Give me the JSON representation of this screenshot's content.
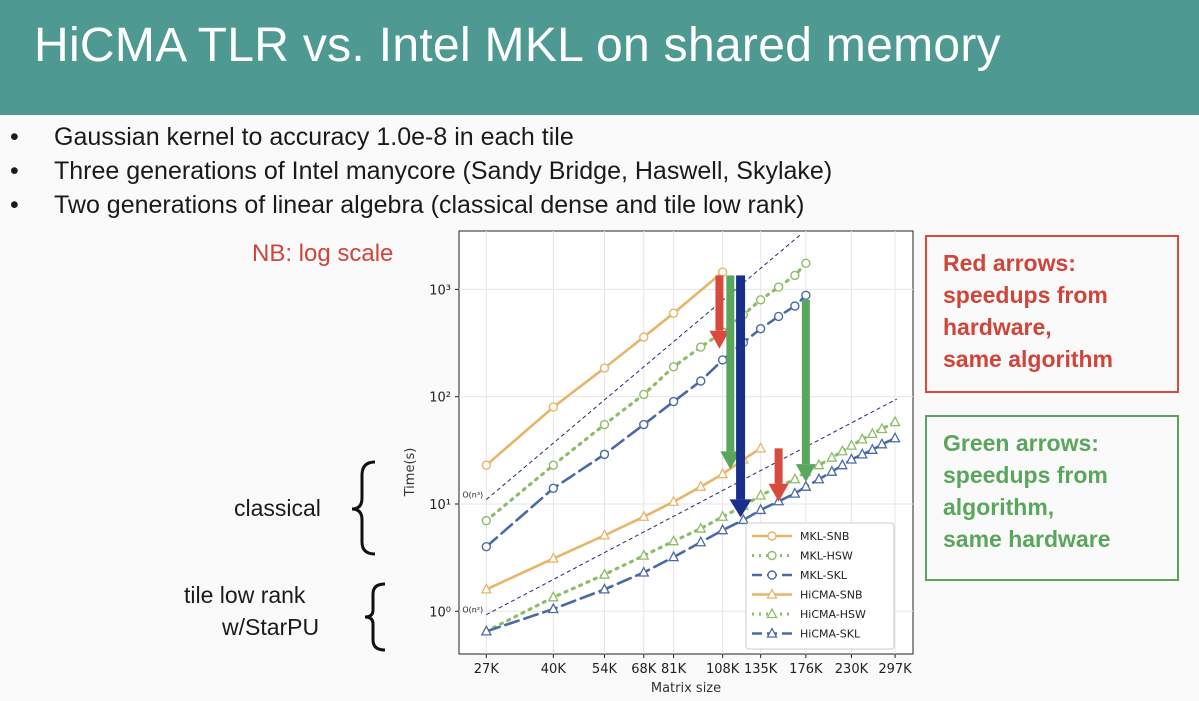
{
  "slide": {
    "title": "HiCMA TLR vs. Intel MKL on shared memory",
    "bullets": [
      "Gaussian kernel to accuracy 1.0e-8 in each tile",
      "Three generations of Intel manycore (Sandy Bridge, Haswell, Skylake)",
      "Two generations of linear algebra (classical dense and tile low rank)"
    ],
    "bullet_symbol": "•",
    "nb_note": "NB: log scale",
    "classical_label": "classical",
    "tlr_label_line1": "tile low rank",
    "tlr_label_line2": "w/StarPU",
    "red_box_text": "Red arrows:\nspeedups from\nhardware,\nsame algorithm",
    "green_box_text": "Green arrows:\nspeedups from\nalgorithm,\nsame hardware",
    "colors": {
      "title_bar": "#4e9a93",
      "red": "#d94a3e",
      "green": "#5aa65c",
      "navy": "#1a2e8c"
    }
  },
  "chart_data": {
    "type": "line",
    "xlabel": "Matrix size",
    "ylabel": "Time(s)",
    "log_scale_x": true,
    "log_scale_y": true,
    "x_ticks": [
      "27K",
      "40K",
      "54K",
      "68K",
      "81K",
      "108K",
      "135K",
      "176K",
      "230K",
      "297K"
    ],
    "x_tick_values": [
      27000,
      40000,
      54000,
      68000,
      81000,
      108000,
      135000,
      176000,
      230000,
      297000
    ],
    "y_ticks": [
      "10⁰",
      "10¹",
      "10²",
      "10³"
    ],
    "y_tick_values": [
      1,
      10,
      100,
      1000
    ],
    "ylim": [
      0.4,
      3500
    ],
    "xlim": [
      23000,
      330000
    ],
    "reference_lines": [
      {
        "label": "O(n³)",
        "x_from": 27000,
        "y_from": 11,
        "x_to": 170000,
        "y_to": 3200
      },
      {
        "label": "O(n²)",
        "x_from": 27000,
        "y_from": 0.93,
        "x_to": 300000,
        "y_to": 95
      }
    ],
    "series": [
      {
        "name": "MKL-SNB",
        "color": "#e8b468",
        "marker": "circle",
        "dash": "solid",
        "x": [
          27000,
          40000,
          54000,
          68000,
          81000,
          108000
        ],
        "y": [
          23,
          80,
          185,
          360,
          600,
          1450
        ]
      },
      {
        "name": "MKL-HSW",
        "color": "#8fbc68",
        "marker": "circle",
        "dash": "dotted",
        "x": [
          27000,
          40000,
          54000,
          68000,
          81000,
          95000,
          108000,
          122000,
          135000,
          150000,
          165000,
          176000
        ],
        "y": [
          7,
          23,
          55,
          105,
          190,
          290,
          400,
          580,
          800,
          1050,
          1350,
          1750
        ]
      },
      {
        "name": "MKL-SKL",
        "color": "#4a6aa6",
        "marker": "circle",
        "dash": "dashed",
        "x": [
          27000,
          40000,
          54000,
          68000,
          81000,
          95000,
          108000,
          122000,
          135000,
          150000,
          165000,
          176000
        ],
        "y": [
          4,
          14,
          29,
          55,
          90,
          140,
          220,
          320,
          430,
          560,
          700,
          880
        ]
      },
      {
        "name": "HiCMA-SNB",
        "color": "#e8b468",
        "marker": "triangle",
        "dash": "solid",
        "x": [
          27000,
          40000,
          54000,
          68000,
          81000,
          95000,
          108000,
          122000,
          135000
        ],
        "y": [
          1.6,
          3.1,
          5.1,
          7.6,
          10.5,
          14.5,
          19,
          26,
          33
        ]
      },
      {
        "name": "HiCMA-HSW",
        "color": "#8fbc68",
        "marker": "triangle",
        "dash": "dotted",
        "x": [
          27000,
          40000,
          54000,
          68000,
          81000,
          95000,
          108000,
          122000,
          135000,
          150000,
          165000,
          176000,
          190000,
          205000,
          218000,
          230000,
          245000,
          260000,
          275000,
          297000
        ],
        "y": [
          0.65,
          1.35,
          2.2,
          3.3,
          4.5,
          5.9,
          7.6,
          9.6,
          12,
          14.5,
          17,
          20,
          23,
          27,
          31,
          35,
          40,
          45,
          50,
          58
        ]
      },
      {
        "name": "HiCMA-SKL",
        "color": "#4a6aa6",
        "marker": "triangle",
        "dash": "dashed",
        "x": [
          27000,
          40000,
          54000,
          68000,
          81000,
          95000,
          108000,
          122000,
          135000,
          150000,
          165000,
          176000,
          190000,
          205000,
          218000,
          230000,
          245000,
          260000,
          275000,
          297000
        ],
        "y": [
          0.65,
          1.05,
          1.6,
          2.3,
          3.2,
          4.4,
          5.7,
          7.1,
          8.8,
          10.6,
          12.5,
          14.5,
          17,
          20,
          23,
          26,
          29,
          32,
          36,
          41
        ]
      }
    ],
    "arrows": [
      {
        "color": "red",
        "x": 106000,
        "y_from": 1350,
        "y_to": 280
      },
      {
        "color": "green",
        "x": 113000,
        "y_from": 1350,
        "y_to": 21
      },
      {
        "color": "navy",
        "x": 120000,
        "y_from": 1350,
        "y_to": 7.5
      },
      {
        "color": "green",
        "x": 176000,
        "y_from": 800,
        "y_to": 16
      },
      {
        "color": "red",
        "x": 150000,
        "y_from": 33,
        "y_to": 10.5
      }
    ],
    "legend_placement": "lower-right"
  }
}
